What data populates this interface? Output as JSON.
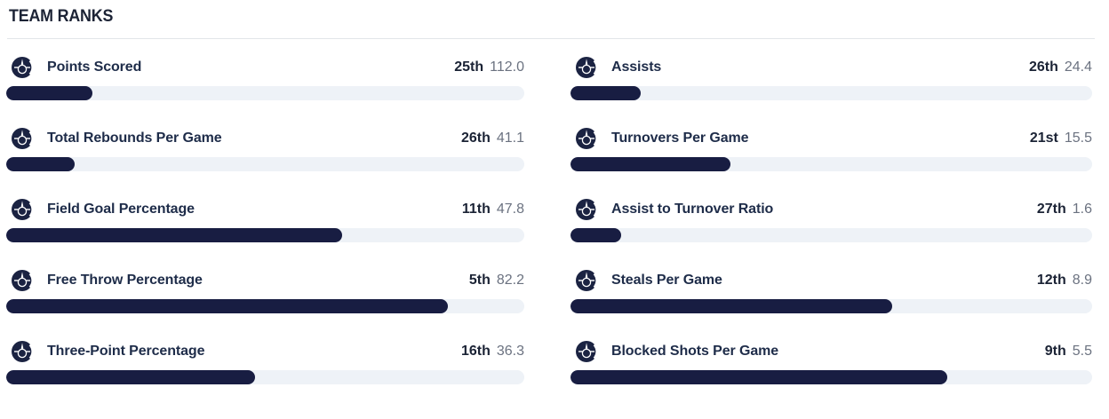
{
  "header": {
    "title": "TEAM RANKS"
  },
  "colors": {
    "navy": "#1c2335",
    "bar_fill": "#181d42",
    "bar_track": "#eef2f7",
    "value_gray": "#6b7280",
    "divider": "#e2e5e9"
  },
  "columns": [
    {
      "stats": [
        {
          "label": "Points Scored",
          "rank": "25th",
          "value": "112.0",
          "fill_pct": 16.6
        },
        {
          "label": "Total Rebounds Per Game",
          "rank": "26th",
          "value": "41.1",
          "fill_pct": 13.2
        },
        {
          "label": "Field Goal Percentage",
          "rank": "11th",
          "value": "47.8",
          "fill_pct": 64.9
        },
        {
          "label": "Free Throw Percentage",
          "rank": "5th",
          "value": "82.2",
          "fill_pct": 85.2
        },
        {
          "label": "Three-Point Percentage",
          "rank": "16th",
          "value": "36.3",
          "fill_pct": 48.0
        }
      ]
    },
    {
      "stats": [
        {
          "label": "Assists",
          "rank": "26th",
          "value": "24.4",
          "fill_pct": 13.5
        },
        {
          "label": "Turnovers Per Game",
          "rank": "21st",
          "value": "15.5",
          "fill_pct": 30.7
        },
        {
          "label": "Assist to Turnover Ratio",
          "rank": "27th",
          "value": "1.6",
          "fill_pct": 9.7
        },
        {
          "label": "Steals Per Game",
          "rank": "12th",
          "value": "8.9",
          "fill_pct": 61.7
        },
        {
          "label": "Blocked Shots Per Game",
          "rank": "9th",
          "value": "5.5",
          "fill_pct": 72.2
        }
      ]
    }
  ],
  "chart_data": {
    "type": "bar",
    "title": "TEAM RANKS",
    "categories": [
      "Points Scored",
      "Total Rebounds Per Game",
      "Field Goal Percentage",
      "Free Throw Percentage",
      "Three-Point Percentage",
      "Assists",
      "Turnovers Per Game",
      "Assist to Turnover Ratio",
      "Steals Per Game",
      "Blocked Shots Per Game"
    ],
    "series": [
      {
        "name": "rank",
        "values": [
          "25th",
          "26th",
          "11th",
          "5th",
          "16th",
          "26th",
          "21st",
          "27th",
          "12th",
          "9th"
        ]
      },
      {
        "name": "stat_value",
        "values": [
          112.0,
          41.1,
          47.8,
          82.2,
          36.3,
          24.4,
          15.5,
          1.6,
          8.9,
          5.5
        ]
      },
      {
        "name": "bar_fill_percent",
        "values": [
          16.6,
          13.2,
          64.9,
          85.2,
          48.0,
          13.5,
          30.7,
          9.7,
          61.7,
          72.2
        ]
      }
    ],
    "layout": "two-column list of horizontal progress bars, fill proportional to inverse rank (30 teams)"
  }
}
